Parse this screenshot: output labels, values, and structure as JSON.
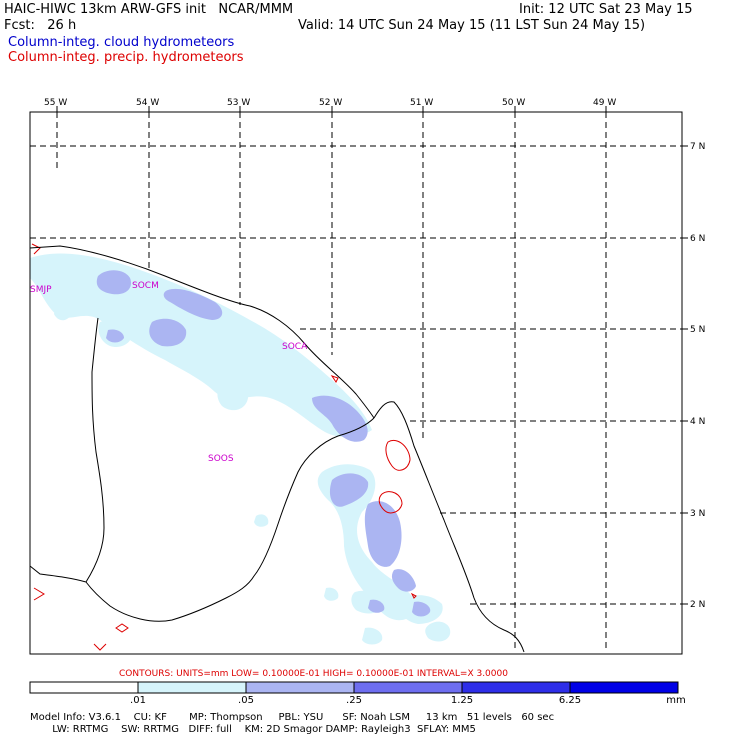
{
  "header": {
    "title": "HAIC-HIWC 13km ARW-GFS init   NCAR/MMM",
    "init": "Init: 12 UTC Sat 23 May 15",
    "fcst": "Fcst:   26 h",
    "valid": "Valid: 14 UTC Sun 24 May 15 (11 LST Sun 24 May 15)",
    "field1": "Column-integ. cloud hydrometeors",
    "field2": "Column-integ. precip. hydrometeors"
  },
  "colors": {
    "field1": "#0000cc",
    "field2": "#dd0000",
    "stations": "#cc00cc",
    "shade": [
      "#ffffff",
      "#d6f4fb",
      "#abb5f2",
      "#6e6ef0",
      "#2e2ee8",
      "#0000e6"
    ]
  },
  "lon_labels": [
    "55 W",
    "54 W",
    "53 W",
    "52 W",
    "51 W",
    "50 W",
    "49 W"
  ],
  "lat_labels": [
    "7 N",
    "6 N",
    "5 N",
    "4 N",
    "3 N",
    "2 N"
  ],
  "stations": [
    "SMJP",
    "SOCM",
    "SOCA",
    "SOOS"
  ],
  "contour_info": "CONTOURS:  UNITS=mm  LOW= 0.10000E-01  HIGH= 0.10000E-01  INTERVAL=X  3.0000",
  "legend": {
    "labels": [
      ".01",
      ".05",
      ".25",
      "1.25",
      "6.25"
    ],
    "units": "mm"
  },
  "footer": {
    "line1": "Model Info: V3.6.1    CU: KF       MP: Thompson     PBL: YSU      SF: Noah LSM     13 km   51 levels   60 sec",
    "line2": "       LW: RRTMG    SW: RRTMG   DIFF: full    KM: 2D Smagor DAMP: Rayleigh3  SFLAY: MM5"
  }
}
